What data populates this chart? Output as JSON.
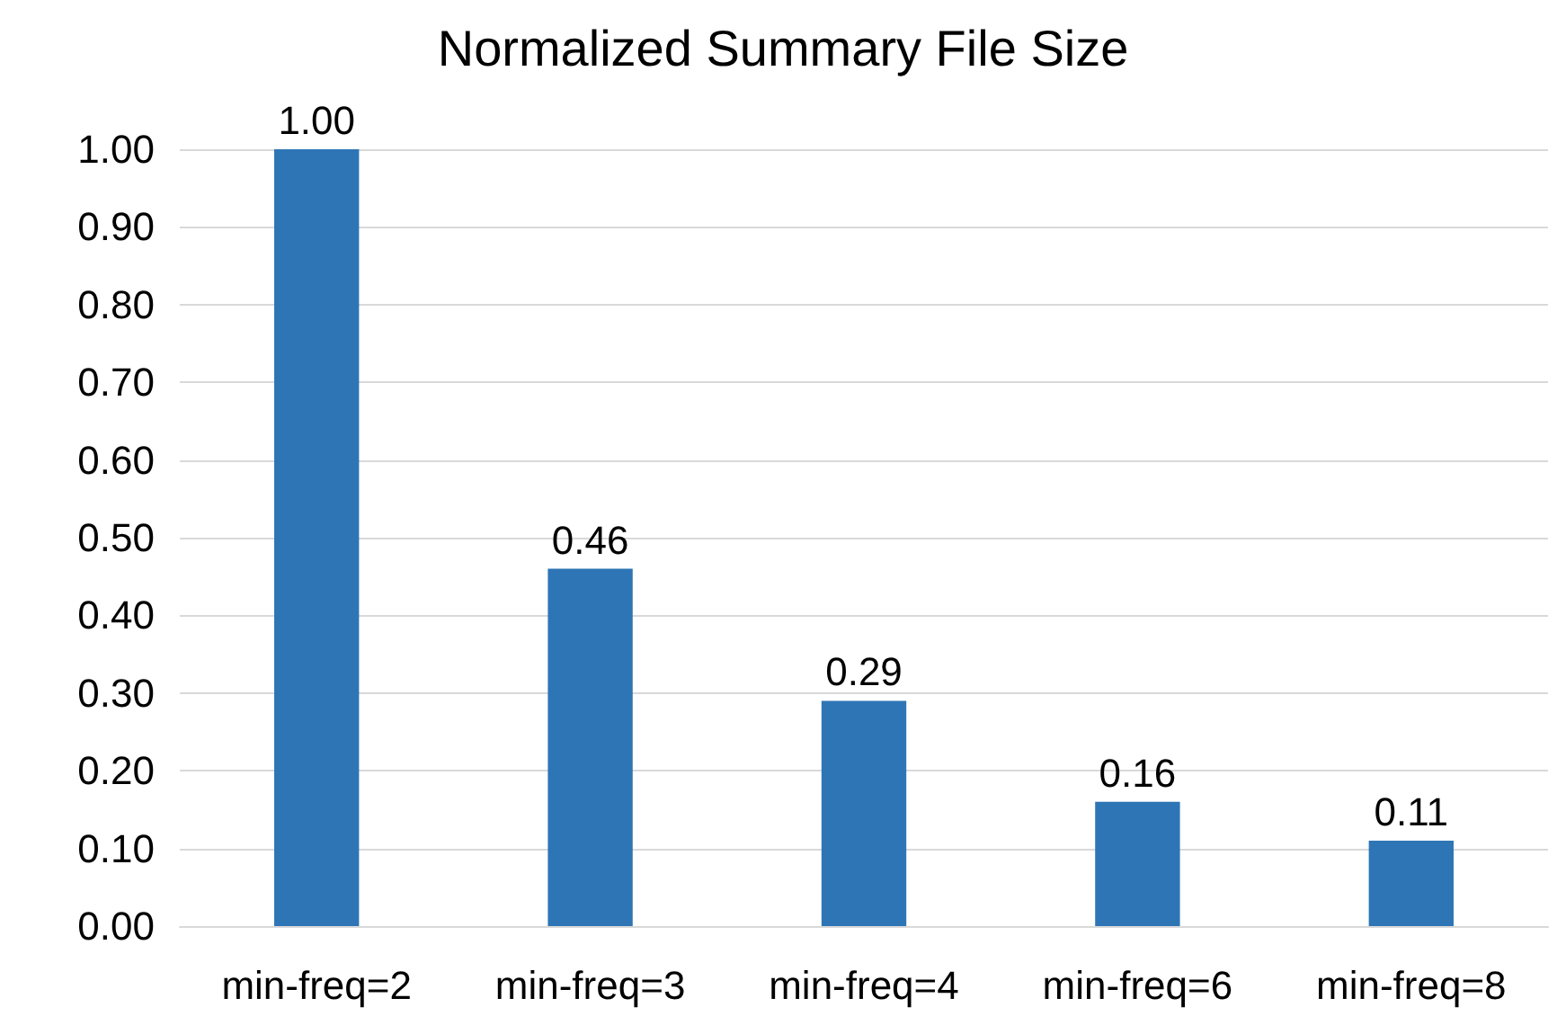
{
  "chart_data": {
    "type": "bar",
    "title": "Normalized Summary File Size",
    "categories": [
      "min-freq=2",
      "min-freq=3",
      "min-freq=4",
      "min-freq=6",
      "min-freq=8"
    ],
    "series": [
      {
        "color": "#2e75b6",
        "values": [
          1.0,
          0.46,
          0.29,
          0.16,
          0.11
        ],
        "value_labels": [
          "1.00",
          "0.46",
          "0.29",
          "0.16",
          "0.11"
        ]
      }
    ],
    "ylim": [
      0,
      1
    ],
    "yticks": [
      {
        "value": 0,
        "label": "0.00"
      },
      {
        "value": 0.1,
        "label": "0.10"
      },
      {
        "value": 0.2,
        "label": "0.20"
      },
      {
        "value": 0.3,
        "label": "0.30"
      },
      {
        "value": 0.4,
        "label": "0.40"
      },
      {
        "value": 0.5,
        "label": "0.50"
      },
      {
        "value": 0.6,
        "label": "0.60"
      },
      {
        "value": 0.7,
        "label": "0.70"
      },
      {
        "value": 0.8,
        "label": "0.80"
      },
      {
        "value": 0.9,
        "label": "0.90"
      },
      {
        "value": 1,
        "label": "1.00"
      }
    ],
    "grid": "y"
  }
}
